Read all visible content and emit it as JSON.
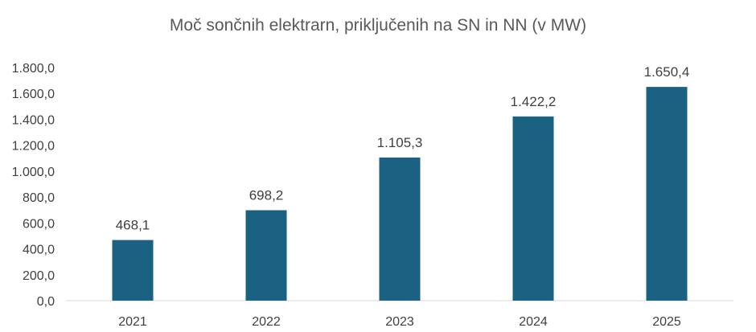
{
  "chart_data": {
    "type": "bar",
    "title": "Moč sončnih elektrarn, priključenih na SN in NN (v MW)",
    "categories": [
      "2021",
      "2022",
      "2023",
      "2024",
      "2025"
    ],
    "values": [
      468.1,
      698.2,
      1105.3,
      1422.2,
      1650.4
    ],
    "data_labels": [
      "468,1",
      "698,2",
      "1.105,3",
      "1.422,2",
      "1.650,4"
    ],
    "y_ticks": [
      0,
      200,
      400,
      600,
      800,
      1000,
      1200,
      1400,
      1600,
      1800
    ],
    "y_tick_labels": [
      "0,0",
      "200,0",
      "400,0",
      "600,0",
      "800,0",
      "1.000,0",
      "1.200,0",
      "1.400,0",
      "1.600,0",
      "1.800,0"
    ],
    "ylim": [
      0,
      1800
    ],
    "xlabel": "",
    "ylabel": "",
    "grid": false,
    "legend": "none",
    "bar_color": "#1b6282"
  }
}
